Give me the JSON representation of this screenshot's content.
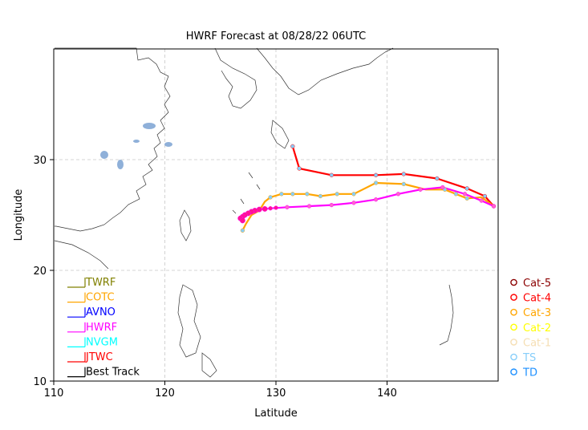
{
  "chart_data": {
    "type": "line",
    "title": "HWRF Forecast at 08/28/22 06UTC",
    "xlabel": "Latitude",
    "ylabel": "Longitude",
    "xlim": [
      110,
      150
    ],
    "ylim": [
      10,
      40
    ],
    "xticks": [
      "110",
      "120",
      "130",
      "140"
    ],
    "yticks": [
      "10",
      "20",
      "30"
    ],
    "grid": true,
    "legend": [
      {
        "name": "TWRF",
        "color": "#808000"
      },
      {
        "name": "COTC",
        "color": "#ffa500"
      },
      {
        "name": "AVNO",
        "color": "#0000ff"
      },
      {
        "name": "HWRF",
        "color": "#ff00ff"
      },
      {
        "name": "NVGM",
        "color": "#00ffff"
      },
      {
        "name": "JTWC",
        "color": "#ff0000"
      },
      {
        "name": "Best Track",
        "color": "#000000"
      }
    ],
    "category_legend": [
      {
        "name": "Cat-5",
        "color": "#8b0000"
      },
      {
        "name": "Cat-4",
        "color": "#ff0000"
      },
      {
        "name": "Cat-3",
        "color": "#ffa500"
      },
      {
        "name": "Cat-2",
        "color": "#ffff00"
      },
      {
        "name": "Cat-1",
        "color": "#f5deb3"
      },
      {
        "name": "TS",
        "color": "#87cefa"
      },
      {
        "name": "TD",
        "color": "#1e90ff"
      }
    ],
    "series": [
      {
        "name": "JTWC",
        "color": "#ff0000",
        "points": [
          [
            149.6,
            25.8
          ],
          [
            148.8,
            26.7
          ],
          [
            147.2,
            27.4
          ],
          [
            144.5,
            28.3
          ],
          [
            141.5,
            28.7
          ],
          [
            139.0,
            28.6
          ],
          [
            135.0,
            28.6
          ],
          [
            132.1,
            29.2
          ],
          [
            131.5,
            31.2
          ]
        ],
        "markers": [
          [
            149.6,
            25.8
          ],
          [
            148.8,
            26.7
          ],
          [
            147.2,
            27.4
          ],
          [
            144.5,
            28.3
          ],
          [
            141.5,
            28.7
          ],
          [
            139.0,
            28.6
          ],
          [
            135.0,
            28.6
          ],
          [
            132.1,
            29.2
          ],
          [
            131.5,
            31.2
          ]
        ]
      },
      {
        "name": "COTC",
        "color": "#ffa500",
        "points": [
          [
            149.6,
            25.8
          ],
          [
            148.5,
            26.6
          ],
          [
            147.2,
            26.5
          ],
          [
            146.2,
            26.9
          ],
          [
            145.2,
            27.3
          ],
          [
            143.5,
            27.3
          ],
          [
            141.5,
            27.8
          ],
          [
            139.0,
            27.9
          ],
          [
            137.0,
            26.9
          ],
          [
            135.5,
            26.9
          ],
          [
            134.0,
            26.7
          ],
          [
            132.8,
            26.9
          ],
          [
            131.5,
            26.9
          ],
          [
            130.5,
            26.9
          ],
          [
            129.5,
            26.6
          ],
          [
            129.0,
            26.2
          ],
          [
            128.5,
            25.4
          ],
          [
            127.8,
            25.0
          ],
          [
            127.3,
            24.2
          ],
          [
            127.0,
            23.6
          ]
        ],
        "markers": [
          [
            149.6,
            25.8
          ],
          [
            147.2,
            26.5
          ],
          [
            146.2,
            26.9
          ],
          [
            145.2,
            27.3
          ],
          [
            141.5,
            27.8
          ],
          [
            139.0,
            27.9
          ],
          [
            137.0,
            26.9
          ],
          [
            135.5,
            26.9
          ],
          [
            134.0,
            26.7
          ],
          [
            132.8,
            26.9
          ],
          [
            131.5,
            26.9
          ],
          [
            130.5,
            26.9
          ],
          [
            129.5,
            26.6
          ],
          [
            127.0,
            23.6
          ]
        ]
      },
      {
        "name": "HWRF",
        "color": "#ff00ff",
        "points": [
          [
            149.6,
            25.8
          ],
          [
            148.5,
            26.3
          ],
          [
            147.0,
            26.9
          ],
          [
            145.0,
            27.5
          ],
          [
            143.0,
            27.3
          ],
          [
            141.0,
            26.9
          ],
          [
            139.0,
            26.4
          ],
          [
            137.0,
            26.1
          ],
          [
            135.0,
            25.9
          ],
          [
            133.0,
            25.8
          ],
          [
            131.0,
            25.7
          ],
          [
            129.5,
            25.6
          ],
          [
            128.5,
            25.5
          ],
          [
            127.8,
            25.3
          ],
          [
            127.2,
            25.0
          ],
          [
            126.8,
            24.7
          ],
          [
            127.0,
            24.5
          ]
        ],
        "markers": [
          [
            149.6,
            25.8
          ],
          [
            148.5,
            26.3
          ],
          [
            147.0,
            26.9
          ],
          [
            145.0,
            27.5
          ],
          [
            143.0,
            27.3
          ],
          [
            141.0,
            26.9
          ],
          [
            139.0,
            26.4
          ],
          [
            137.0,
            26.1
          ],
          [
            135.0,
            25.9
          ],
          [
            133.0,
            25.8
          ],
          [
            131.0,
            25.7
          ],
          [
            130.0,
            25.65
          ],
          [
            129.5,
            25.6
          ],
          [
            129.0,
            25.55
          ],
          [
            128.5,
            25.5
          ],
          [
            128.1,
            25.4
          ],
          [
            127.8,
            25.3
          ],
          [
            127.5,
            25.15
          ],
          [
            127.2,
            25.0
          ],
          [
            127.0,
            24.85
          ],
          [
            126.8,
            24.7
          ],
          [
            127.0,
            24.5
          ]
        ]
      }
    ]
  }
}
